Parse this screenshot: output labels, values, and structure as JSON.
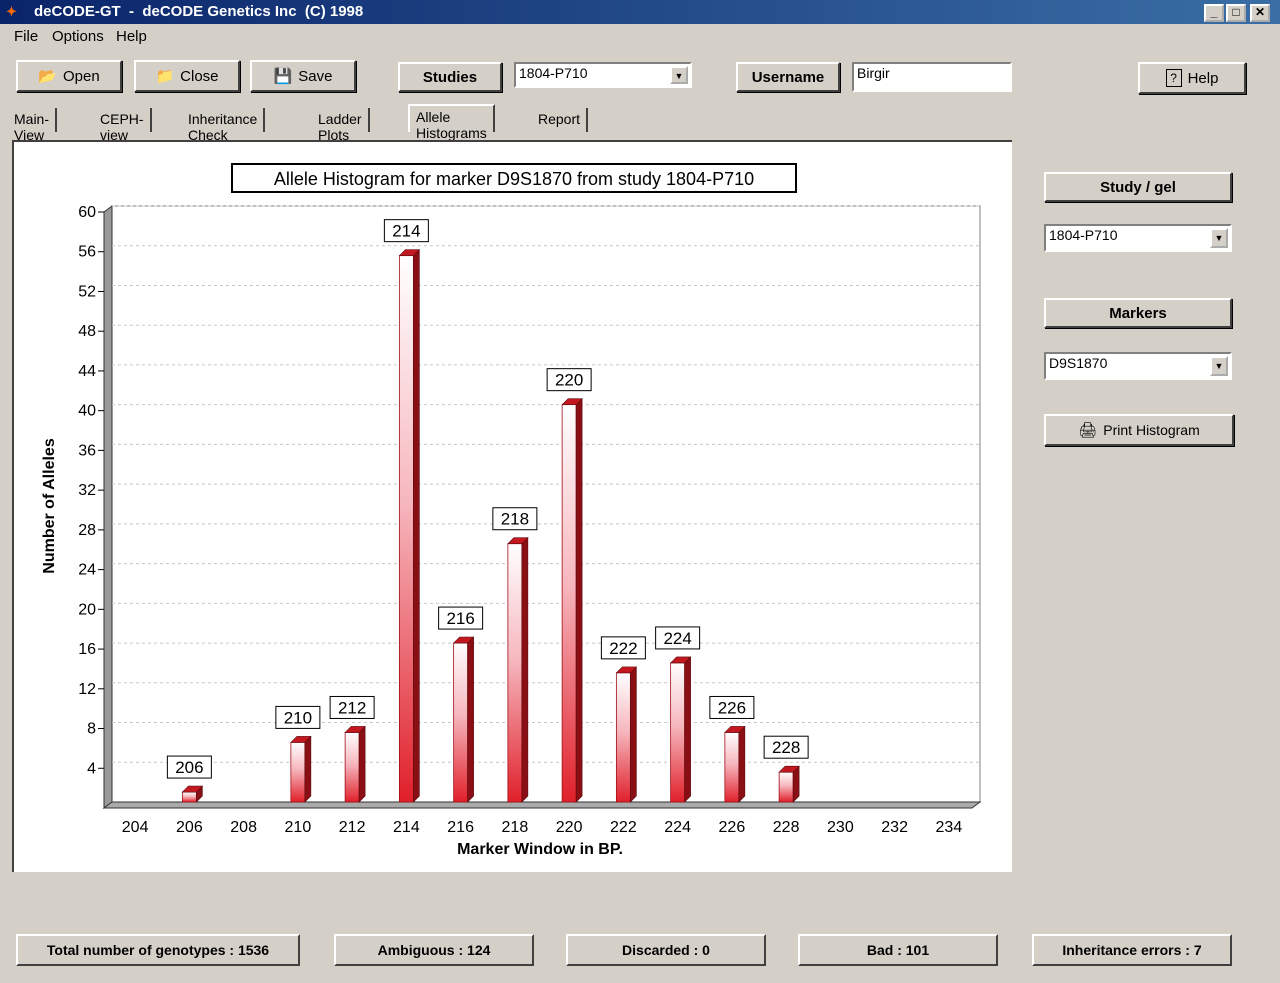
{
  "window": {
    "title": "deCODE-GT  -  deCODE Genetics Inc  (C) 1998"
  },
  "menu": [
    "File",
    "Options",
    "Help"
  ],
  "toolbar": {
    "open_label": "Open",
    "close_label": "Close",
    "save_label": "Save",
    "studies_label": "Studies",
    "studies_value": "1804-P710",
    "username_label": "Username",
    "username_value": "Birgir",
    "help_label": "Help"
  },
  "tabs": [
    {
      "label": "Main-View",
      "active": false
    },
    {
      "label": "CEPH-view",
      "active": false
    },
    {
      "label": "Inheritance Check",
      "active": false
    },
    {
      "label": "Ladder Plots",
      "active": false
    },
    {
      "label": "Allele Histograms",
      "active": true
    },
    {
      "label": "Report",
      "active": false
    }
  ],
  "side": {
    "study_label": "Study / gel",
    "study_value": "1804-P710",
    "markers_label": "Markers",
    "markers_value": "D9S1870",
    "print_label": "Print Histogram"
  },
  "status": {
    "total": "Total number of genotypes : 1536",
    "ambiguous": "Ambiguous : 124",
    "discarded": "Discarded : 0",
    "bad": "Bad : 101",
    "inheritance": "Inheritance errors : 7"
  },
  "colors": {
    "bar": "#e0202a",
    "bar_dark": "#8a0f14",
    "titlebar": "#0a246a",
    "panel_bg": "#d4d0c8"
  },
  "chart_data": {
    "type": "bar",
    "title": "Allele Histogram for marker D9S1870  from study 1804-P710",
    "xlabel": "Marker Window in BP.",
    "ylabel": "Number of Alleles",
    "ylim": [
      0,
      60
    ],
    "yticks": [
      4,
      8,
      12,
      16,
      20,
      24,
      28,
      32,
      36,
      40,
      44,
      48,
      52,
      56,
      60
    ],
    "xticks": [
      204,
      206,
      208,
      210,
      212,
      214,
      216,
      218,
      220,
      222,
      224,
      226,
      228,
      230,
      232,
      234
    ],
    "grid": true,
    "bars": [
      {
        "x": 206,
        "value": 1,
        "label": "206"
      },
      {
        "x": 210,
        "value": 6,
        "label": "210"
      },
      {
        "x": 212,
        "value": 7,
        "label": "212"
      },
      {
        "x": 214,
        "value": 55,
        "label": "214"
      },
      {
        "x": 216,
        "value": 16,
        "label": "216"
      },
      {
        "x": 218,
        "value": 26,
        "label": "218"
      },
      {
        "x": 220,
        "value": 40,
        "label": "220"
      },
      {
        "x": 222,
        "value": 13,
        "label": "222"
      },
      {
        "x": 224,
        "value": 14,
        "label": "224"
      },
      {
        "x": 226,
        "value": 7,
        "label": "226"
      },
      {
        "x": 228,
        "value": 3,
        "label": "228"
      }
    ]
  }
}
